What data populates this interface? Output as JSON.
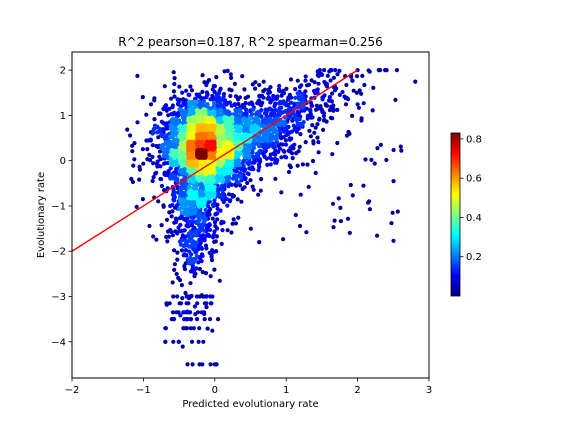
{
  "chart_data": {
    "type": "scatter",
    "title": "R^2 pearson=0.187, R^2 spearman=0.256",
    "xlabel": "Predicted evolutionary rate",
    "ylabel": "Evolutionary rate",
    "xlim": [
      -2,
      3
    ],
    "ylim": [
      -4.8,
      2.4
    ],
    "xticks": [
      -2,
      -1,
      0,
      1,
      2,
      3
    ],
    "yticks": [
      -4,
      -3,
      -2,
      -1,
      0,
      1,
      2
    ],
    "grid": false,
    "colormap": "jet",
    "density_peak": {
      "x": -0.15,
      "y": 0.2
    },
    "colorbar": {
      "range": [
        0.0,
        0.83
      ],
      "ticks": [
        0.2,
        0.4,
        0.6,
        0.8
      ],
      "colors": [
        "#00007f",
        "#0000ff",
        "#007fff",
        "#00ffff",
        "#7fff7f",
        "#ffff00",
        "#ff7f00",
        "#ff0000",
        "#7f0000"
      ]
    },
    "fit_line": {
      "color": "#ff0000",
      "points": [
        [
          -2,
          -2.0
        ],
        [
          2,
          2.0
        ]
      ]
    }
  }
}
